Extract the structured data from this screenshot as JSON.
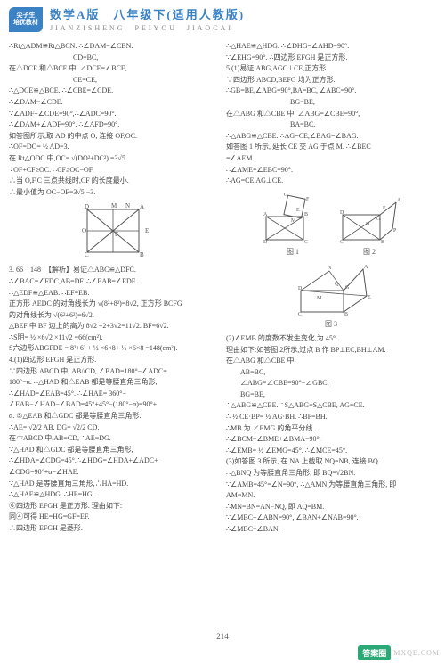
{
  "header": {
    "logo_line1": "尖子生",
    "logo_line2": "培优教材",
    "title_main": "数学A版　八年级下(适用人教版)",
    "title_sub": "JIANZISHENG　PEIYOU　JIAOCAI"
  },
  "left_col": {
    "lines": [
      "∴Rt△ADM≌Rt△BCN. ∴∠DAM=∠CBN.",
      "　　　　　　　　　CD=BC,",
      "在△DCE 和△BCE 中, ∠DCE=∠BCE,",
      "　　　　　　　　　CE=CE,",
      "∴△DCE≌△BCE. ∴∠CBE=∠CDE.",
      "∴∠DAM=∠CDE.",
      "∵∠ADF+∠CDE=90°,∴∠ADC=90°.",
      "∴∠DAM+∠ADF=90°. ∴∠AFD=90°.",
      "如答图所示,取 AD 的中点 O, 连接 OF,OC.",
      "∴OF=DO= ½ AD=3.",
      "在 Rt△ODC 中,OC= √(DO²+DC²) =3√5.",
      "∵OF+CF≥OC. ∴CF≥OC−OF.",
      "∴当 O,F,C 三点共线时,CF 的长度最小.",
      "∴最小值为 OC−OF=3√5 −3."
    ],
    "fig_letters": [
      "M",
      "N",
      "D",
      "A",
      "O",
      "C",
      "F",
      "B",
      "E"
    ],
    "lines2": [
      "3. 66　148　【解析】易证△ABC≌△DFC.",
      "∴∠BAC=∠FDC,AB=DF. ∴∠EAB=∠EDF.",
      "∴△EDF≌△EAB. ∴EF=EB.",
      "正方形 AEDC 的对角线长为 √(8²+8²)=8√2, 正方形 BCFG",
      "的对角线长为 √(6²+6²)=6√2.",
      "△BEF 中 BF 边上的高为 8√2 ÷2+3√2=11√2. BF=6√2.",
      "∴S阴= ½ ×6√2 ×11√2 =66(cm²).",
      "S六边形ABGFDE = 8²+6² + ½ ×6×8+ ½ ×6×8 =148(cm²).",
      "4.(1)四边形 EFGH 是正方形.",
      "∵四边形 ABCD 中, AB//CD, ∠BAD=180°−∠ADC=",
      "180°−α. ∴△HAD 和△EAB 都是等腰直角三角形,",
      "∴∠HAD=∠EAB=45°. ∴∠HAE= 360°−",
      "∠EAB−∠HAD−∠BAD=45°+45°−(180°−α)=90°+",
      "α. ⑤△EAB 和△GDC 都是等腰直角三角形.",
      "∴AE= √2/2 AB, DG= √2/2 CD.",
      "在▱ABCD 中,AB=CD, ∴AE=DG.",
      "∵△HAD 和△GDC 都是等腰直角三角形,",
      "∴∠HDA=∠CDG=45°.∴∠HDG=∠HDA+∠ADC+",
      "∠CDG=90°+α=∠HAE.",
      "∵△HAD 是等腰直角三角形,∴HA=HD.",
      "∴△HAE≌△HDG. ∴HE=HG.",
      "⑥四边形 EFGH 是正方形. 理由如下:",
      "同④可得 HE=HG=GF=EF.",
      "∴四边形 EFGH 是菱形."
    ]
  },
  "right_col": {
    "lines": [
      "∴△HAE≌△HDG. ∴∠DHG=∠AHD=90°.",
      "∵∠EHG=90°. ∴四边形 EFGH 是正方形.",
      "5.(1)易证 ABG,AGC⊥CE,正方形.",
      "∵四边形 ABCD,BEFG 均为正方形.",
      "∴GB=BE,∠ABG=90°,BA=BC, ∠ABC=90°.",
      "　　　　　　　　　BG=BE,",
      "在△ABG 和△CBE 中, ∠ABG=∠CBE=90°,",
      "　　　　　　　　　BA=BC,",
      "∴△ABG≌△CBE. ∴AG=CE,∠BAG=∠BAG.",
      "如答图 1 所示, 延长 CE 交 AG 于点 M. ∴∠BEC",
      "=∠AEM.",
      "∴∠AME=∠EBC=90°.",
      "∴AG=CE,AG⊥CE."
    ],
    "fig1_label": "图 1",
    "fig2_label": "图 2",
    "fig3_label": "图 3",
    "lines2": [
      "(2)∠EMB 的度数不发生变化,为 45°.",
      "理由如下:如答图 2所示,过点 B 作 BP⊥EC,BH⊥AM.",
      "在△ABG 和△CBE 中,",
      "　　AB=BC,",
      "　　∠ABG=∠CBE=90°−∠GBC,",
      "　　BG=BE,",
      "∴△ABG≌△CBE. ∴S△ABG=S△CBE, AG=CE.",
      "∴ ½ CE·BP= ½ AG·BH. ∴BP=BH.",
      "∴MB 为 ∠EMG 的角平分线.",
      "∴∠BCM=∠BME+∠BMA=90°.",
      "∴∠EMB= ½ ∠EMG=45°. ∴∠MCE=45°.",
      "(3)如答图 3 所示, 在 NA 上截取 NQ=NB, 连接 BQ.",
      "∴△BNQ 为等腰直角三角形, 即 BQ=√2BN.",
      "∵∠AMB=45°=∠N=90°, ∴△AMN 为等腰直角三角形, 即",
      "AM=MN.",
      "∴MN=BN=AN−NQ, 即 AQ=BM.",
      "∵∠MBC+∠ABN=90°, ∠BAN+∠NAB=90°.",
      "∴∠MBC=∠BAN."
    ]
  },
  "page_number": "214",
  "watermark": {
    "badge": "答案圈",
    "url": "MXQE.COM"
  },
  "colors": {
    "brand": "#3b82c4",
    "text": "#444444",
    "muted": "#888888",
    "wm_badge": "#2aa876"
  }
}
